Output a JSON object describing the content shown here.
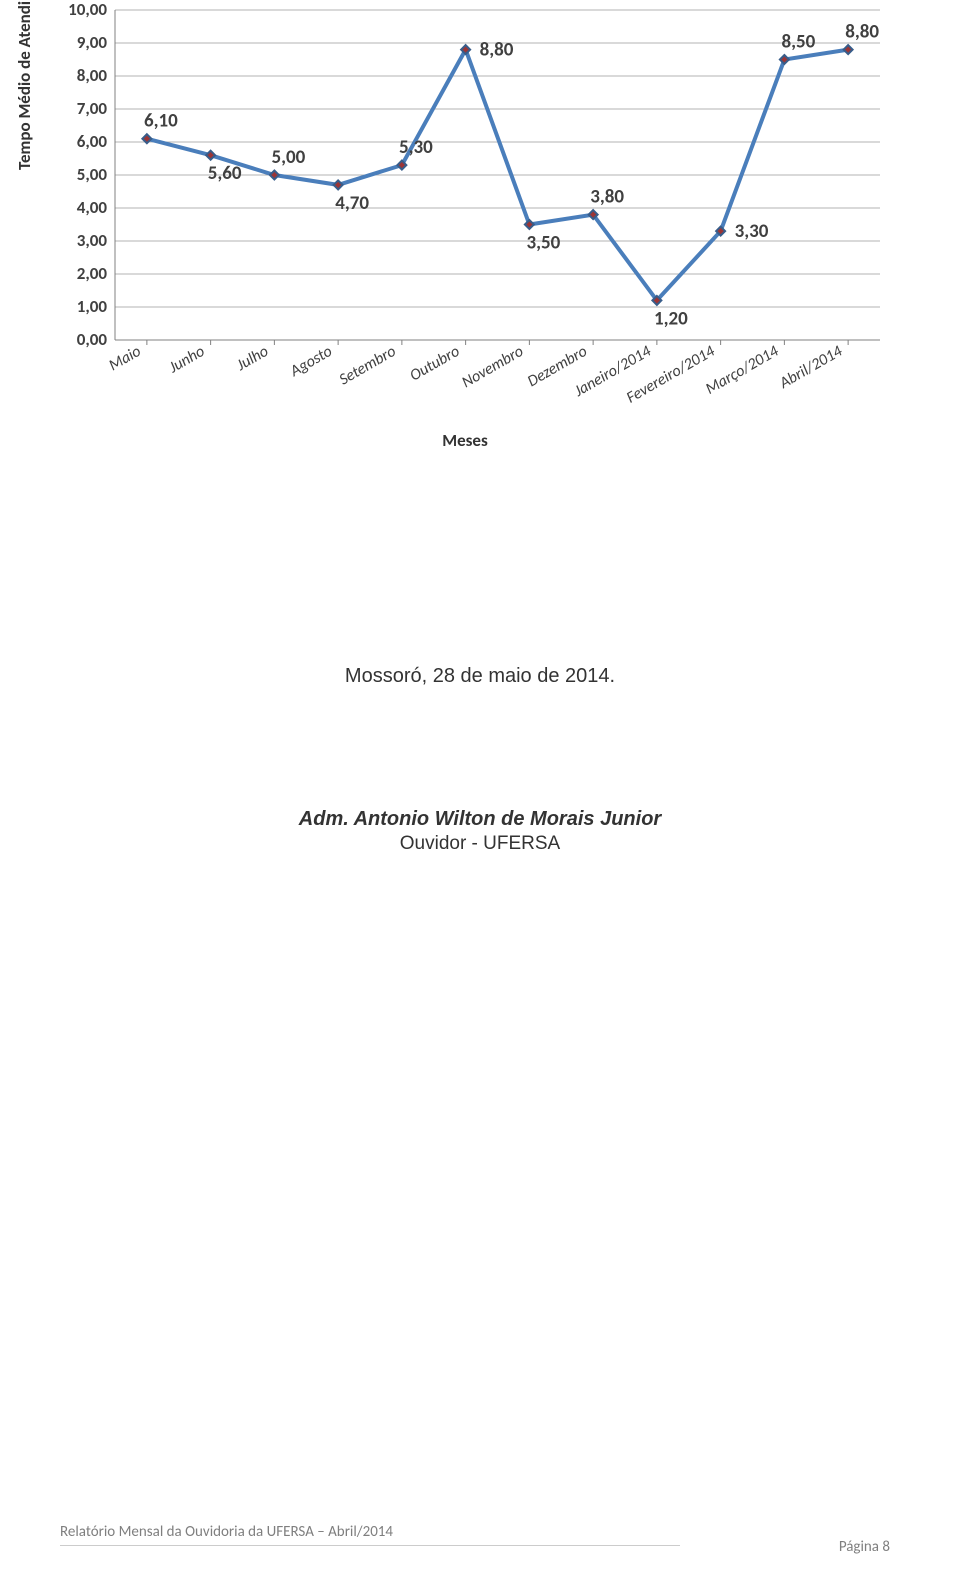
{
  "chart": {
    "type": "line",
    "ylabel": "Tempo Médio de Atendimento (dias)",
    "xaxis_title": "Meses",
    "ylim": [
      0,
      10
    ],
    "ytick_step": 1,
    "yticks": [
      "0,00",
      "1,00",
      "2,00",
      "3,00",
      "4,00",
      "5,00",
      "6,00",
      "7,00",
      "8,00",
      "9,00",
      "10,00"
    ],
    "categories": [
      "Maio",
      "Junho",
      "Julho",
      "Agosto",
      "Setembro",
      "Outubro",
      "Novembro",
      "Dezembro",
      "Janeiro/2014",
      "Fevereiro/2014",
      "Março/2014",
      "Abril/2014"
    ],
    "values": [
      6.1,
      5.6,
      5.0,
      4.7,
      5.3,
      8.8,
      3.5,
      3.8,
      1.2,
      3.3,
      8.5,
      8.8
    ],
    "value_labels": [
      "6,10",
      "5,60",
      "5,00",
      "4,70",
      "5,30",
      "8,80",
      "3,50",
      "3,80",
      "1,20",
      "3,30",
      "8,50",
      "8,80"
    ],
    "label_pos": [
      "above",
      "below",
      "above",
      "below",
      "above",
      "right",
      "below",
      "above",
      "below",
      "right",
      "above",
      "above"
    ],
    "line_color": "#4a7ebb",
    "marker_border": "#385d8a",
    "marker_fill": "#9c3536",
    "marker_size": 9,
    "line_width": 4,
    "grid_color": "#b3b3b3",
    "axis_color": "#808080",
    "background_color": "#ffffff",
    "label_fontsize": 19,
    "tick_fontsize": 17
  },
  "signoff": {
    "location": "Mossoró, 28 de maio de 2014.",
    "name": "Adm. Antonio Wilton de Morais Junior",
    "title": "Ouvidor - UFERSA"
  },
  "footer": {
    "text": "Relatório Mensal da Ouvidoria da UFERSA – Abril/2014",
    "page": "Página 8"
  }
}
